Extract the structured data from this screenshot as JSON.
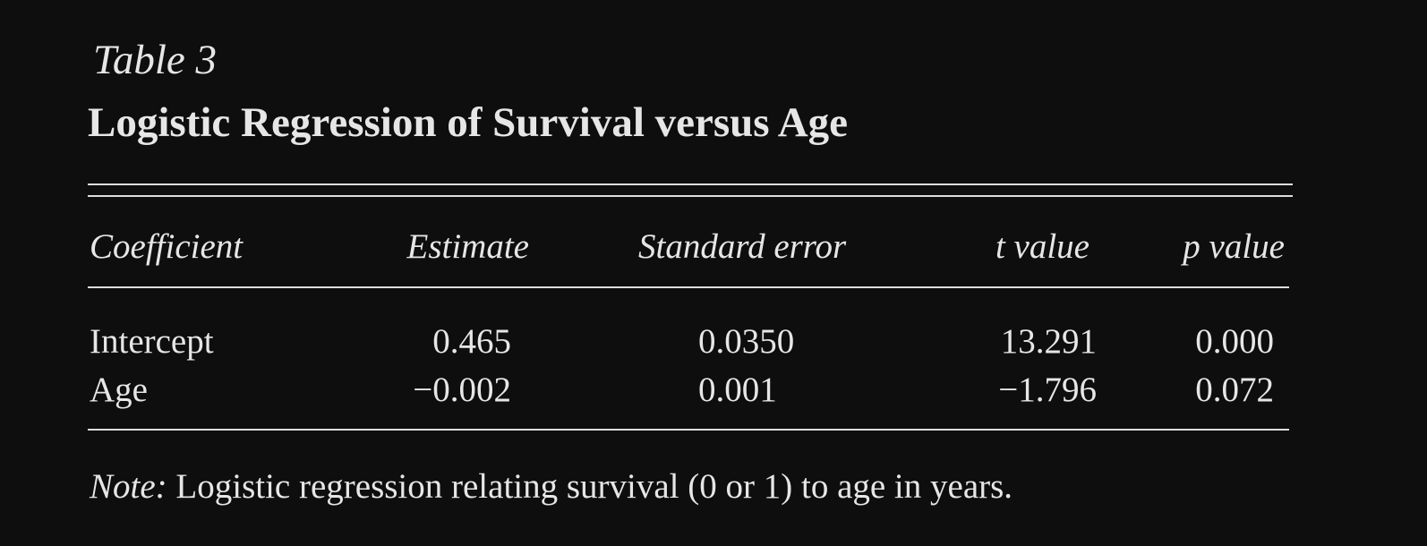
{
  "table": {
    "number": "Table 3",
    "title": "Logistic Regression of Survival versus Age",
    "headers": {
      "coefficient": "Coefficient",
      "estimate": "Estimate",
      "standard_error": "Standard error",
      "t_value": "t value",
      "p_value": "p value"
    },
    "rows": [
      {
        "coefficient": "Intercept",
        "estimate": "0.465",
        "standard_error": "0.0350",
        "t_value": "13.291",
        "p_value": "0.000"
      },
      {
        "coefficient": "Age",
        "estimate": "−0.002",
        "standard_error": "0.001",
        "t_value": "−1.796",
        "p_value": "0.072"
      }
    ],
    "note": {
      "label": "Note:",
      "text": " Logistic regression relating survival (0 or 1) to age in years."
    }
  },
  "colors": {
    "background": "#0e0e0e",
    "text": "#e6e6e6",
    "rule": "#dcdcdc"
  }
}
